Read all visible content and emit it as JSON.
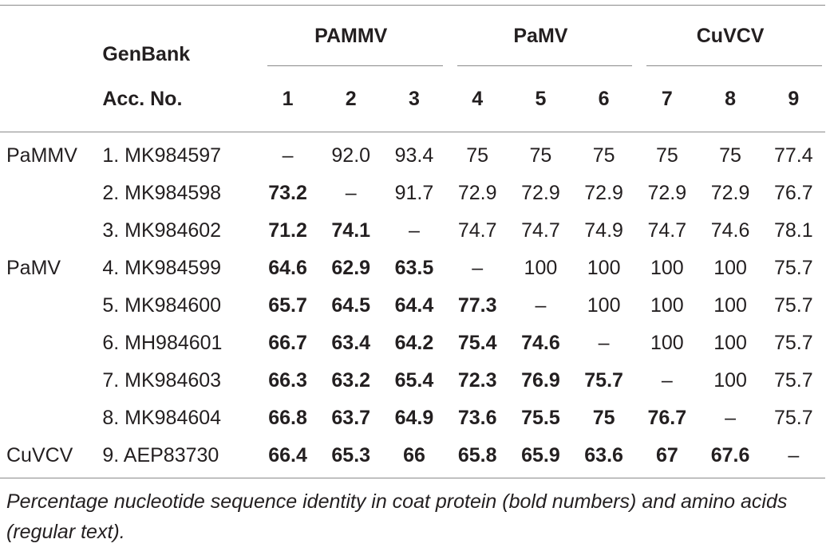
{
  "table": {
    "header": {
      "genbank_line1": "GenBank",
      "genbank_line2": "Acc. No.",
      "groups": [
        "PAMMV",
        "PaMV",
        "CuVCV"
      ],
      "column_numbers": [
        "1",
        "2",
        "3",
        "4",
        "5",
        "6",
        "7",
        "8",
        "9"
      ]
    },
    "rows": [
      {
        "group": "PaMMV",
        "acc": "1. MK984597",
        "cells": [
          {
            "v": "–",
            "b": false
          },
          {
            "v": "92.0",
            "b": false
          },
          {
            "v": "93.4",
            "b": false
          },
          {
            "v": "75",
            "b": false
          },
          {
            "v": "75",
            "b": false
          },
          {
            "v": "75",
            "b": false
          },
          {
            "v": "75",
            "b": false
          },
          {
            "v": "75",
            "b": false
          },
          {
            "v": "77.4",
            "b": false
          }
        ]
      },
      {
        "group": "",
        "acc": "2. MK984598",
        "cells": [
          {
            "v": "73.2",
            "b": true
          },
          {
            "v": "–",
            "b": false
          },
          {
            "v": "91.7",
            "b": false
          },
          {
            "v": "72.9",
            "b": false
          },
          {
            "v": "72.9",
            "b": false
          },
          {
            "v": "72.9",
            "b": false
          },
          {
            "v": "72.9",
            "b": false
          },
          {
            "v": "72.9",
            "b": false
          },
          {
            "v": "76.7",
            "b": false
          }
        ]
      },
      {
        "group": "",
        "acc": "3. MK984602",
        "cells": [
          {
            "v": "71.2",
            "b": true
          },
          {
            "v": "74.1",
            "b": true
          },
          {
            "v": "–",
            "b": false
          },
          {
            "v": "74.7",
            "b": false
          },
          {
            "v": "74.7",
            "b": false
          },
          {
            "v": "74.9",
            "b": false
          },
          {
            "v": "74.7",
            "b": false
          },
          {
            "v": "74.6",
            "b": false
          },
          {
            "v": "78.1",
            "b": false
          }
        ]
      },
      {
        "group": "PaMV",
        "acc": "4. MK984599",
        "cells": [
          {
            "v": "64.6",
            "b": true
          },
          {
            "v": "62.9",
            "b": true
          },
          {
            "v": "63.5",
            "b": true
          },
          {
            "v": "–",
            "b": false
          },
          {
            "v": "100",
            "b": false
          },
          {
            "v": "100",
            "b": false
          },
          {
            "v": "100",
            "b": false
          },
          {
            "v": "100",
            "b": false
          },
          {
            "v": "75.7",
            "b": false
          }
        ]
      },
      {
        "group": "",
        "acc": "5. MK984600",
        "cells": [
          {
            "v": "65.7",
            "b": true
          },
          {
            "v": "64.5",
            "b": true
          },
          {
            "v": "64.4",
            "b": true
          },
          {
            "v": "77.3",
            "b": true
          },
          {
            "v": "–",
            "b": false
          },
          {
            "v": "100",
            "b": false
          },
          {
            "v": "100",
            "b": false
          },
          {
            "v": "100",
            "b": false
          },
          {
            "v": "75.7",
            "b": false
          }
        ]
      },
      {
        "group": "",
        "acc": "6. MH984601",
        "cells": [
          {
            "v": "66.7",
            "b": true
          },
          {
            "v": "63.4",
            "b": true
          },
          {
            "v": "64.2",
            "b": true
          },
          {
            "v": "75.4",
            "b": true
          },
          {
            "v": "74.6",
            "b": true
          },
          {
            "v": "–",
            "b": false
          },
          {
            "v": "100",
            "b": false
          },
          {
            "v": "100",
            "b": false
          },
          {
            "v": "75.7",
            "b": false
          }
        ]
      },
      {
        "group": "",
        "acc": "7. MK984603",
        "cells": [
          {
            "v": "66.3",
            "b": true
          },
          {
            "v": "63.2",
            "b": true
          },
          {
            "v": "65.4",
            "b": true
          },
          {
            "v": "72.3",
            "b": true
          },
          {
            "v": "76.9",
            "b": true
          },
          {
            "v": "75.7",
            "b": true
          },
          {
            "v": "–",
            "b": false
          },
          {
            "v": "100",
            "b": false
          },
          {
            "v": "75.7",
            "b": false
          }
        ]
      },
      {
        "group": "",
        "acc": "8. MK984604",
        "cells": [
          {
            "v": "66.8",
            "b": true
          },
          {
            "v": "63.7",
            "b": true
          },
          {
            "v": "64.9",
            "b": true
          },
          {
            "v": "73.6",
            "b": true
          },
          {
            "v": "75.5",
            "b": true
          },
          {
            "v": "75",
            "b": true
          },
          {
            "v": "76.7",
            "b": true
          },
          {
            "v": "–",
            "b": false
          },
          {
            "v": "75.7",
            "b": false
          }
        ]
      },
      {
        "group": "CuVCV",
        "acc": "9. AEP83730",
        "cells": [
          {
            "v": "66.4",
            "b": true
          },
          {
            "v": "65.3",
            "b": true
          },
          {
            "v": "66",
            "b": true
          },
          {
            "v": "65.8",
            "b": true
          },
          {
            "v": "65.9",
            "b": true
          },
          {
            "v": "63.6",
            "b": true
          },
          {
            "v": "67",
            "b": true
          },
          {
            "v": "67.6",
            "b": true
          },
          {
            "v": "–",
            "b": false
          }
        ]
      }
    ]
  },
  "footnote": "Percentage nucleotide sequence identity in coat protein (bold numbers) and amino acids (regular text)."
}
